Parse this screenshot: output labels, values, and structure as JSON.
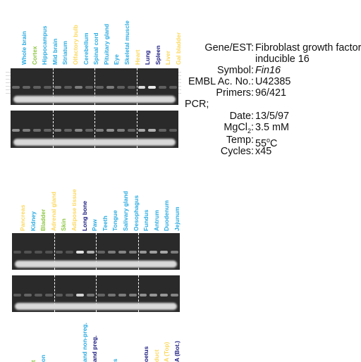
{
  "panel1": {
    "labels": [
      {
        "text": "Whole brain",
        "color": "#29abe2"
      },
      {
        "text": "Cortex",
        "color": "#8cc63f"
      },
      {
        "text": "Hippocampus",
        "color": "#29abe2"
      },
      {
        "text": "Mid brain",
        "color": "#29abe2"
      },
      {
        "text": "Striatum",
        "color": "#29abe2"
      },
      {
        "text": "Olfactory bulb",
        "color": "#fbd85d"
      },
      {
        "text": "Cerebellum",
        "color": "#29abe2"
      },
      {
        "text": "Spinal cord",
        "color": "#29abe2"
      },
      {
        "text": "Pituitary gland",
        "color": "#29abe2"
      },
      {
        "text": "Eye",
        "color": "#29abe2"
      },
      {
        "text": "Skeletal muscle",
        "color": "#29abe2"
      },
      {
        "text": "Heart",
        "color": "#fbd85d"
      },
      {
        "text": "Lung",
        "color": "#1a1a80"
      },
      {
        "text": "Spleen",
        "color": "#1a1a80"
      },
      {
        "text": "Liver",
        "color": "#fbd85d"
      },
      {
        "text": "Gal bladder",
        "color": "#fbd85d"
      }
    ],
    "gel_top_intensity": [
      0.18,
      0.15,
      0.12,
      0.1,
      0.25,
      0.1,
      0.3,
      0.12,
      0.15,
      0.3,
      0.12,
      0.1,
      0.85,
      0.95,
      0.12,
      0.1
    ],
    "gel_bottom_intensity": [
      0.4,
      0.3,
      0.2,
      0.15,
      0.3,
      0.15,
      0.35,
      0.15,
      0.3,
      0.4,
      0.3,
      0.15,
      0.55,
      0.6,
      0.15,
      0.1
    ]
  },
  "panel2": {
    "labels": [
      {
        "text": "Pancreas",
        "color": "#fbd85d"
      },
      {
        "text": "Kidney",
        "color": "#29abe2"
      },
      {
        "text": "Bladder",
        "color": "#8cc63f"
      },
      {
        "text": "Adrenal gland",
        "color": "#fbd85d"
      },
      {
        "text": "Skin",
        "color": "#8cc63f"
      },
      {
        "text": "Adipose tissue",
        "color": "#fbd85d"
      },
      {
        "text": "Long bone",
        "color": "#1a1a80"
      },
      {
        "text": "Paw",
        "color": "#29abe2"
      },
      {
        "text": "Teeth",
        "color": "#29abe2"
      },
      {
        "text": "Tongue",
        "color": "#29abe2"
      },
      {
        "text": "Salivary gland",
        "color": "#29abe2"
      },
      {
        "text": "Oesophagus",
        "color": "#29abe2"
      },
      {
        "text": "Fundus",
        "color": "#29abe2"
      },
      {
        "text": "Antrum",
        "color": "#29abe2"
      },
      {
        "text": "Duodenum",
        "color": "#29abe2"
      },
      {
        "text": "Jejunum",
        "color": "#29abe2"
      }
    ],
    "gel_top_intensity": [
      0.05,
      0.05,
      0.05,
      0.05,
      0.1,
      0.05,
      0.9,
      0.6,
      0.15,
      0.3,
      0.35,
      0.3,
      0.45,
      0.5,
      0.55,
      0.3
    ],
    "gel_bottom_intensity": [
      0.1,
      0.15,
      0.1,
      0.1,
      0.1,
      0.1,
      0.8,
      0.25,
      0.15,
      0.25,
      0.3,
      0.3,
      0.4,
      0.45,
      0.45,
      0.35
    ]
  },
  "panel3": {
    "labels": [
      {
        "text": "",
        "color": "#29abe2"
      },
      {
        "text": "t",
        "color": "#8cc63f"
      },
      {
        "text": "on",
        "color": "#29abe2"
      },
      {
        "text": "",
        "color": "#29abe2"
      },
      {
        "text": "",
        "color": "#29abe2"
      },
      {
        "text": "",
        "color": "#fbd85d"
      },
      {
        "text": "and non-preg.",
        "color": "#29abe2"
      },
      {
        "text": "and preg.",
        "color": "#1a1a80"
      },
      {
        "text": "",
        "color": "#29abe2"
      },
      {
        "text": "s",
        "color": "#29abe2"
      },
      {
        "text": "",
        "color": "#29abe2"
      },
      {
        "text": "",
        "color": "#29abe2"
      },
      {
        "text": "oetus",
        "color": "#1a1a80"
      },
      {
        "text": "duct",
        "color": "#fbd85d"
      },
      {
        "text": "A (Top)",
        "color": "#fbd85d"
      },
      {
        "text": "A (Bot.)",
        "color": "#1a1a80"
      }
    ]
  },
  "info": {
    "gene_key": "Gene/EST:",
    "gene_value": "Fibroblast growth factor",
    "gene_value2": "inducible 16",
    "symbol_key": "Symbol:",
    "symbol_value": "Fin16",
    "embl_key": "EMBL Ac. No.:",
    "embl_value": "U42385",
    "primers_key": "Primers:",
    "primers_value": "96/421",
    "pcr_key": "PCR;",
    "date_key": "Date:",
    "date_value": "13/5/97",
    "mgcl2_key": "MgCl",
    "mgcl2_sub": "2",
    "mgcl2_colon": ":",
    "mgcl2_value": "3.5 mM",
    "temp_key": "Temp:",
    "temp_value": "55",
    "temp_deg": "o",
    "temp_unit": "C",
    "cycles_key": "Cycles:",
    "cycles_value": "x45"
  }
}
